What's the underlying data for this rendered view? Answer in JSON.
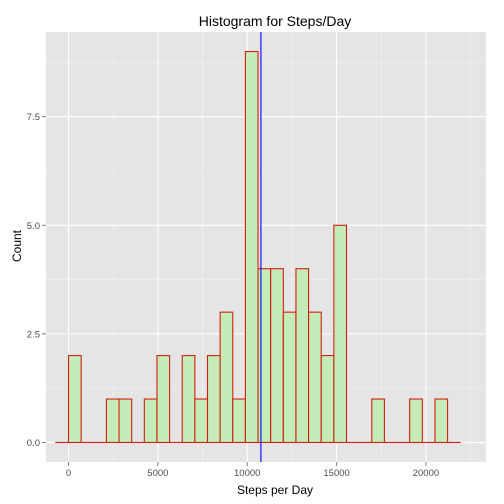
{
  "chart_data": {
    "type": "bar",
    "title": "Histogram for Steps/Day",
    "xlabel": "Steps per Day",
    "ylabel": "Count",
    "xlim": [
      -1260,
      23360
    ],
    "ylim": [
      -0.45,
      9.45
    ],
    "x_ticks": [
      0,
      5000,
      10000,
      15000,
      20000
    ],
    "x_tick_labels": [
      "0",
      "5000",
      "10000",
      "15000",
      "20000"
    ],
    "y_ticks": [
      0,
      2.5,
      5,
      7.5
    ],
    "y_tick_labels": [
      "0.0",
      "2.5",
      "5.0",
      "7.5"
    ],
    "bin_start": -707,
    "bin_width": 707,
    "counts": [
      0,
      2,
      0,
      0,
      1,
      1,
      0,
      1,
      2,
      0,
      2,
      1,
      2,
      3,
      1,
      9,
      4,
      4,
      3,
      4,
      3,
      2,
      5,
      0,
      0,
      1,
      0,
      0,
      1,
      0,
      1,
      0
    ],
    "fill_color": "#c4ebb8",
    "outline_color": "#d21f0f",
    "vline": {
      "value": 10766,
      "color": "#0000ff"
    },
    "panel_color": "#e5e5e5",
    "grid": true
  }
}
